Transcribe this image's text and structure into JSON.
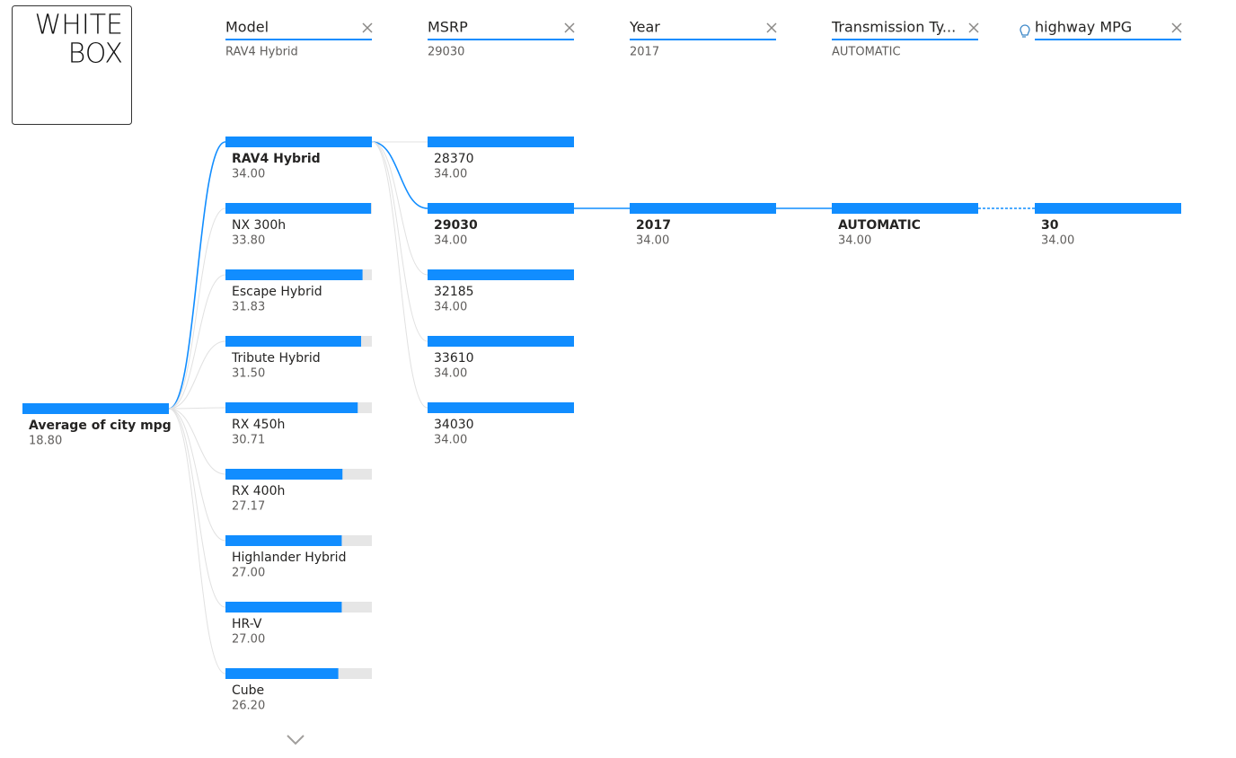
{
  "logo": [
    "WHITE",
    "BOX"
  ],
  "root": {
    "label": "Average of city mpg",
    "value": 18.8,
    "value_label": "18.80"
  },
  "levels": [
    {
      "header": "Model",
      "selected": "RAV4 Hybrid",
      "nodes": [
        {
          "label": "RAV4 Hybrid",
          "value": 34,
          "value_label": "34.00"
        },
        {
          "label": "NX 300h",
          "value": 33.8,
          "value_label": "33.80"
        },
        {
          "label": "Escape Hybrid",
          "value": 31.83,
          "value_label": "31.83"
        },
        {
          "label": "Tribute Hybrid",
          "value": 31.5,
          "value_label": "31.50"
        },
        {
          "label": "RX 450h",
          "value": 30.71,
          "value_label": "30.71"
        },
        {
          "label": "RX 400h",
          "value": 27.17,
          "value_label": "27.17"
        },
        {
          "label": "Highlander Hybrid",
          "value": 27,
          "value_label": "27.00"
        },
        {
          "label": "HR-V",
          "value": 27,
          "value_label": "27.00"
        },
        {
          "label": "Cube",
          "value": 26.2,
          "value_label": "26.20"
        }
      ]
    },
    {
      "header": "MSRP",
      "selected": "29030",
      "nodes": [
        {
          "label": "28370",
          "value": 34,
          "value_label": "34.00"
        },
        {
          "label": "29030",
          "value": 34,
          "value_label": "34.00"
        },
        {
          "label": "32185",
          "value": 34,
          "value_label": "34.00"
        },
        {
          "label": "33610",
          "value": 34,
          "value_label": "34.00"
        },
        {
          "label": "34030",
          "value": 34,
          "value_label": "34.00"
        }
      ]
    },
    {
      "header": "Year",
      "selected": "2017",
      "nodes": [
        {
          "label": "2017",
          "value": 34,
          "value_label": "34.00"
        }
      ]
    },
    {
      "header": "Transmission Ty...",
      "selected": "AUTOMATIC",
      "nodes": [
        {
          "label": "AUTOMATIC",
          "value": 34,
          "value_label": "34.00"
        }
      ]
    },
    {
      "header": "highway MPG",
      "nodes": [
        {
          "label": "30",
          "value": 34,
          "value_label": "34.00"
        }
      ]
    }
  ]
}
